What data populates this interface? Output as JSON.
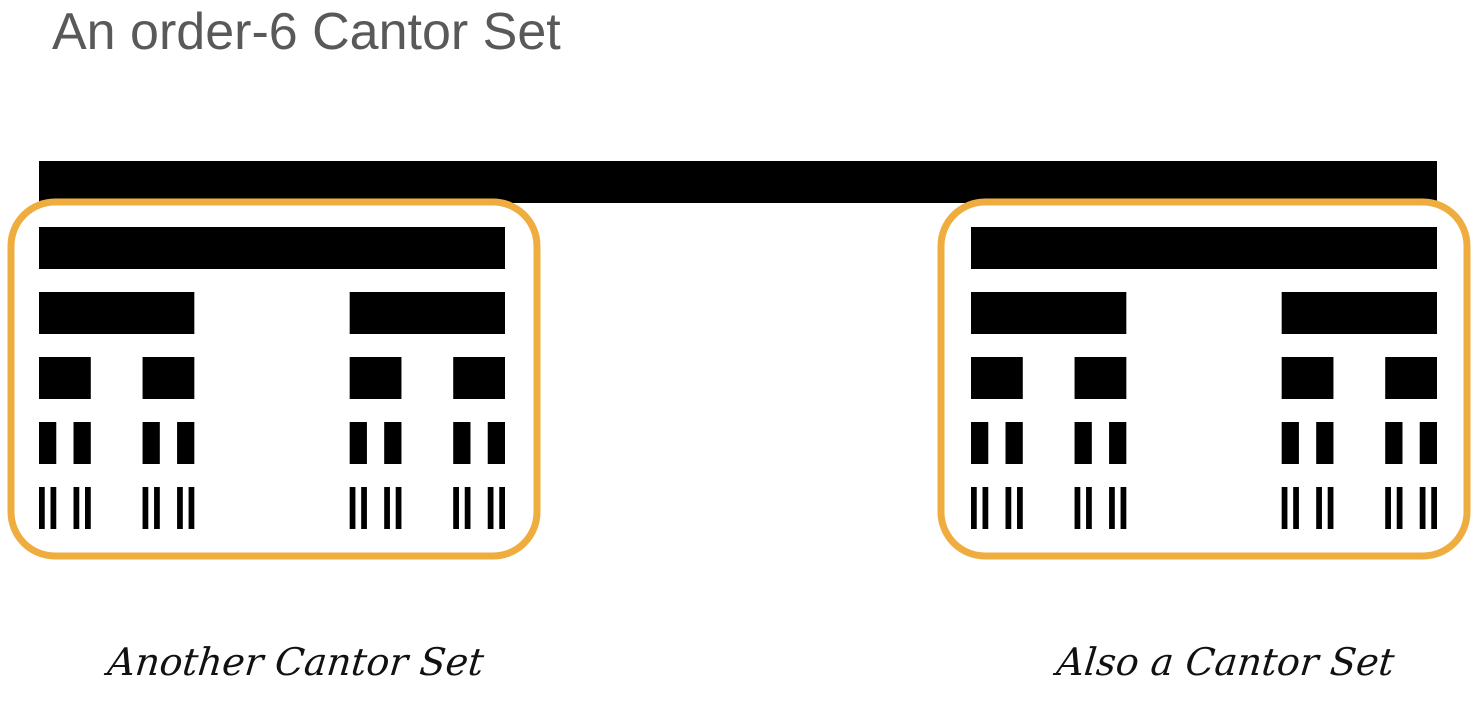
{
  "title": "An order-6 Cantor Set",
  "cantor": {
    "order": 6,
    "fill_color": "#000000"
  },
  "highlights": {
    "border_color": "#F0AD3F",
    "left_caption": "Another Cantor Set",
    "right_caption": "Also a Cantor Set"
  }
}
